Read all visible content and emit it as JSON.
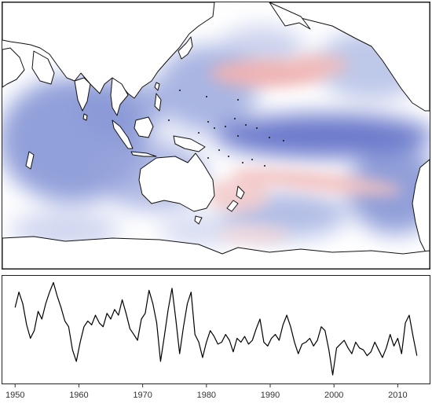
{
  "chart_data": [
    {
      "type": "heatmap",
      "title": "",
      "colormap": {
        "negative": "#4a5cbf",
        "zero": "#ffffff",
        "positive": "#e88c8c"
      },
      "pattern": [
        {
          "region": "North Pacific central",
          "sign": "positive"
        },
        {
          "region": "Tropical central/eastern Pacific band",
          "sign": "negative"
        },
        {
          "region": "South Pacific diagonal band toward New Zealand",
          "sign": "positive"
        },
        {
          "region": "Indian Ocean",
          "sign": "negative"
        },
        {
          "region": "Southeast Pacific",
          "sign": "negative"
        }
      ]
    },
    {
      "type": "line",
      "title": "",
      "xlabel": "",
      "ylabel": "",
      "xlim": [
        1948,
        2015
      ],
      "ylim": [
        -2.5,
        2.6
      ],
      "xticks": [
        "1950",
        "1960",
        "1970",
        "1980",
        "1990",
        "2000",
        "2010"
      ],
      "grid": false,
      "series": [
        {
          "x": [
            1950.0,
            1950.6,
            1951.2,
            1951.8,
            1952.4,
            1953.0,
            1953.6,
            1954.2,
            1954.8,
            1955.4,
            1956.0,
            1956.6,
            1957.2,
            1957.8,
            1958.4,
            1959.0,
            1959.6,
            1960.2,
            1960.8,
            1961.4,
            1962.0,
            1962.6,
            1963.2,
            1963.8,
            1964.4,
            1965.0,
            1965.6,
            1966.2,
            1966.8,
            1967.4,
            1968.0,
            1968.6,
            1969.2,
            1969.8,
            1970.4,
            1971.0,
            1971.6,
            1972.2,
            1972.8,
            1973.4,
            1974.0,
            1974.6,
            1975.2,
            1975.8,
            1976.4,
            1977.0,
            1977.6,
            1978.2,
            1978.8,
            1979.4,
            1980.0,
            1980.6,
            1981.2,
            1981.8,
            1982.4,
            1983.0,
            1983.6,
            1984.2,
            1984.8,
            1985.4,
            1986.0,
            1986.6,
            1987.2,
            1987.8,
            1988.4,
            1989.0,
            1989.6,
            1990.2,
            1990.8,
            1991.4,
            1992.0,
            1992.6,
            1993.2,
            1993.8,
            1994.4,
            1995.0,
            1995.6,
            1996.2,
            1996.8,
            1997.4,
            1998.0,
            1998.6,
            1999.2,
            1999.8,
            2000.4,
            2001.0,
            2001.6,
            2002.2,
            2002.8,
            2003.4,
            2004.0,
            2004.6,
            2005.2,
            2005.8,
            2006.4,
            2007.0,
            2007.6,
            2008.2,
            2008.8,
            2009.4,
            2010.0,
            2010.6,
            2011.2,
            2011.8,
            2012.4,
            2013.0
          ],
          "values": [
            1.2,
            2.0,
            1.4,
            0.3,
            -0.4,
            0.0,
            1.0,
            0.6,
            1.4,
            2.0,
            2.5,
            1.8,
            1.2,
            0.5,
            0.2,
            -1.0,
            -1.6,
            -0.6,
            0.2,
            0.5,
            0.3,
            0.8,
            0.4,
            0.2,
            0.9,
            0.6,
            1.1,
            0.8,
            1.6,
            0.9,
            0.1,
            -0.2,
            -0.5,
            0.6,
            0.9,
            2.1,
            1.4,
            0.4,
            -1.6,
            -0.3,
            1.1,
            2.2,
            0.6,
            -1.2,
            0.2,
            1.4,
            2.0,
            -0.2,
            -0.6,
            -1.4,
            -0.6,
            0.0,
            -0.3,
            -0.7,
            -0.6,
            -0.2,
            -0.5,
            -1.1,
            -0.4,
            -0.6,
            -0.3,
            -0.7,
            -0.5,
            0.1,
            0.6,
            -0.6,
            -0.8,
            -0.4,
            -0.2,
            -0.5,
            0.3,
            0.8,
            0.2,
            -0.6,
            -1.2,
            -0.7,
            -0.6,
            -0.4,
            -0.8,
            -0.5,
            0.2,
            0.0,
            -1.0,
            -2.3,
            -0.9,
            -0.7,
            -0.5,
            -0.9,
            -1.2,
            -0.6,
            -0.9,
            -1.0,
            -1.3,
            -1.1,
            -0.6,
            -1.0,
            -1.4,
            -0.9,
            -0.2,
            -0.8,
            -0.4,
            -1.2,
            0.4,
            0.8,
            -0.3,
            -1.3
          ]
        }
      ]
    }
  ]
}
